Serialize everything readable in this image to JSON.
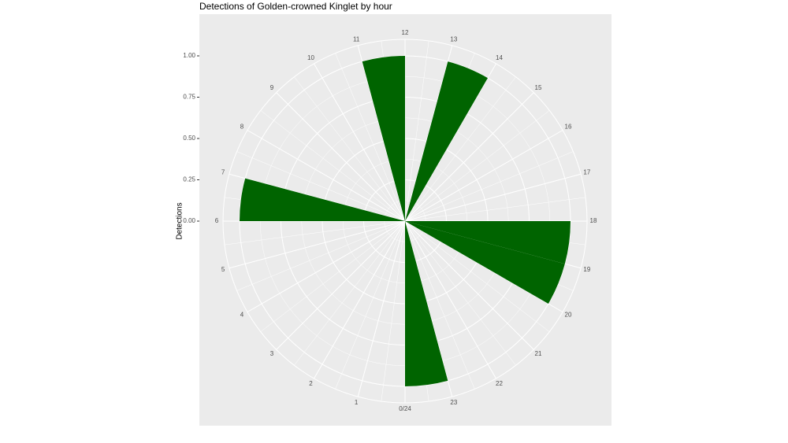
{
  "chart_data": {
    "type": "polar_bar",
    "title": "Detections of Golden-crowned Kinglet by hour",
    "y_label": "Detections",
    "x": [
      6,
      11,
      13,
      18,
      19,
      23
    ],
    "values": [
      1,
      1,
      1,
      1,
      1,
      1
    ],
    "color": "#006400",
    "xlim": [
      0,
      24
    ],
    "xticks": [
      {
        "value": 0,
        "label": "0/24"
      },
      1,
      2,
      3,
      4,
      5,
      6,
      7,
      8,
      9,
      10,
      11,
      12,
      13,
      14,
      15,
      16,
      17,
      18,
      19,
      20,
      21,
      22,
      23
    ],
    "ylim": [
      0,
      1.1
    ],
    "yticks": [
      {
        "value": 0,
        "label": "0.00"
      },
      {
        "value": 0.25,
        "label": "0.25"
      },
      {
        "value": 0.5,
        "label": "0.50"
      },
      {
        "value": 0.75,
        "label": "0.75"
      },
      {
        "value": 1,
        "label": "1.00"
      }
    ],
    "grid": true
  }
}
